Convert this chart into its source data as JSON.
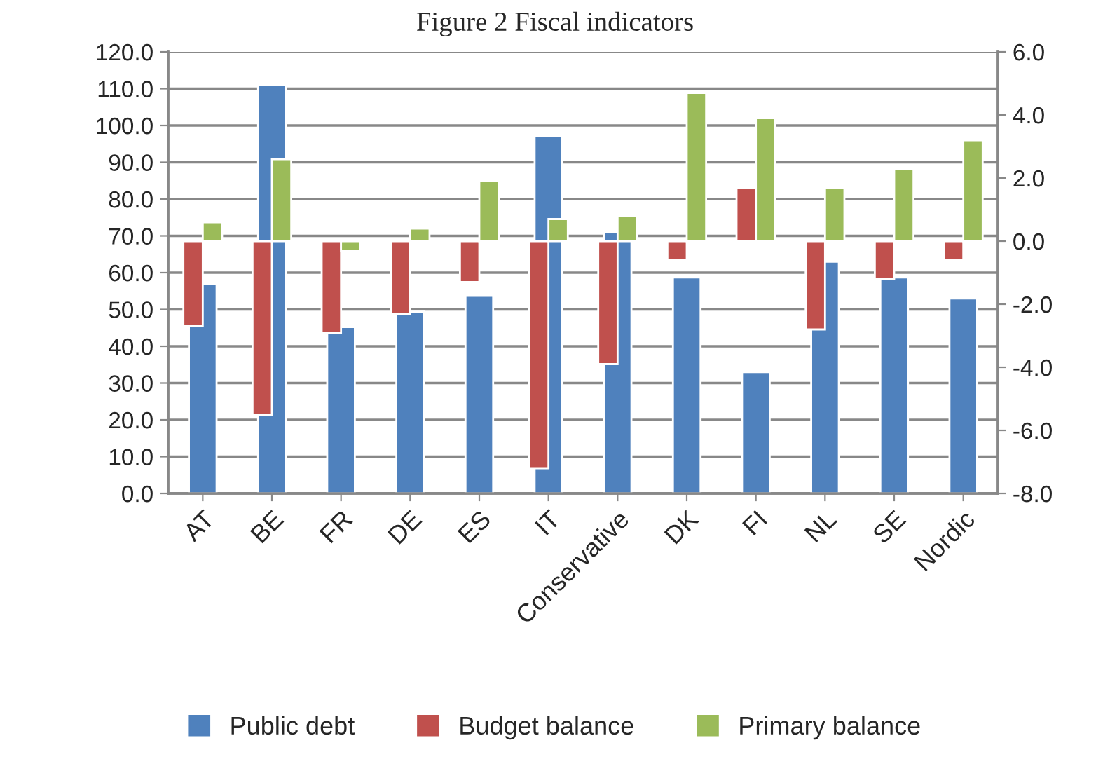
{
  "chart_data": {
    "type": "bar",
    "title": "Figure 2 Fiscal indicators",
    "categories": [
      "AT",
      "BE",
      "FR",
      "DE",
      "ES",
      "IT",
      "Conservative",
      "DK",
      "FI",
      "NL",
      "SE",
      "Nordic"
    ],
    "series": [
      {
        "name": "Public debt",
        "color": "#4f81bd",
        "values": [
          57.0,
          111.0,
          45.2,
          49.4,
          53.7,
          97.2,
          71.0,
          58.7,
          33.0,
          63.0,
          58.7,
          53.0
        ]
      },
      {
        "name": "Budget balance",
        "color": "#c0504d",
        "axis": "y2",
        "values": [
          -2.7,
          -5.5,
          -2.9,
          -2.3,
          -1.3,
          -7.2,
          -3.9,
          -0.6,
          1.7,
          -2.8,
          -1.2,
          -0.6
        ]
      },
      {
        "name": "Primary balance",
        "color": "#9bbb59",
        "axis": "y2",
        "values": [
          0.6,
          2.6,
          -0.3,
          0.4,
          1.9,
          0.7,
          0.8,
          4.7,
          3.9,
          1.7,
          2.3,
          3.2
        ]
      }
    ],
    "ylim": [
      0,
      120
    ],
    "yticks": [
      {
        "value": 0,
        "label": "0.0"
      },
      {
        "value": 10,
        "label": "10.0"
      },
      {
        "value": 20,
        "label": "20.0"
      },
      {
        "value": 30,
        "label": "30.0"
      },
      {
        "value": 40,
        "label": "40.0"
      },
      {
        "value": 50,
        "label": "50.0"
      },
      {
        "value": 60,
        "label": "60.0"
      },
      {
        "value": 70,
        "label": "70.0"
      },
      {
        "value": 80,
        "label": "80.0"
      },
      {
        "value": 90,
        "label": "90.0"
      },
      {
        "value": 100,
        "label": "100.0"
      },
      {
        "value": 110,
        "label": "110.0"
      },
      {
        "value": 120,
        "label": "120.0"
      }
    ],
    "y2lim": [
      -8,
      6
    ],
    "y2ticks": [
      {
        "value": -8,
        "label": "-8.0"
      },
      {
        "value": -6,
        "label": "-6.0"
      },
      {
        "value": -4,
        "label": "-4.0"
      },
      {
        "value": -2,
        "label": "-2.0"
      },
      {
        "value": 0,
        "label": "0.0"
      },
      {
        "value": 2,
        "label": "2.0"
      },
      {
        "value": 4,
        "label": "4.0"
      },
      {
        "value": 6,
        "label": "6.0"
      }
    ],
    "grid": "y",
    "legend": "bottom"
  }
}
